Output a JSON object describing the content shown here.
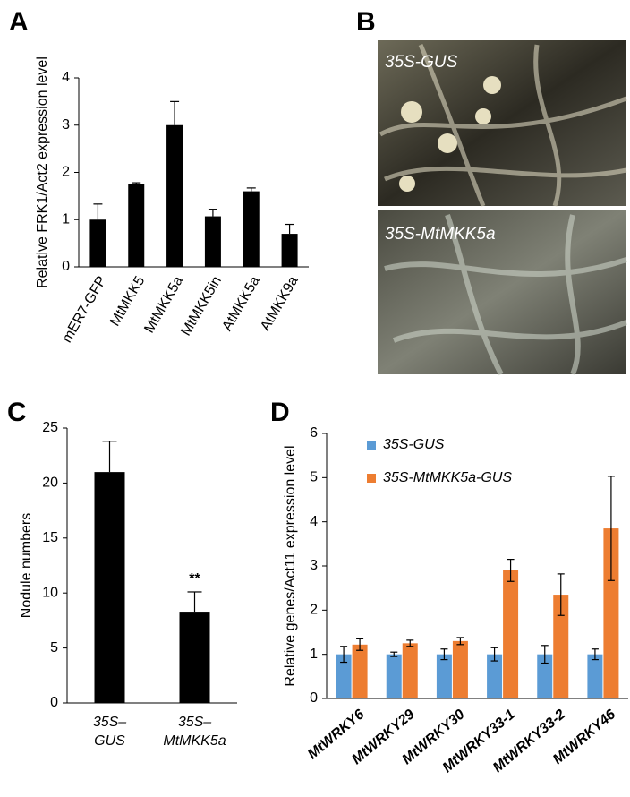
{
  "chart_data": [
    {
      "type": "bar",
      "label": "A",
      "y_label": "Relative FRK1/Act2 expression level",
      "categories": [
        "mER7-GFP",
        "MtMKK5",
        "MtMKK5a",
        "MtMKK5in",
        "AtMKK5a",
        "AtMKK9a"
      ],
      "values": [
        1.0,
        1.75,
        3.0,
        1.07,
        1.6,
        0.7
      ],
      "errors": [
        0.33,
        0.03,
        0.5,
        0.15,
        0.07,
        0.2
      ],
      "color": "#000000",
      "ylim": [
        0,
        4
      ],
      "yticks": [
        0,
        1,
        2,
        3,
        4
      ]
    },
    {
      "type": "bar",
      "label": "C",
      "y_label": "Nodule numbers",
      "categories": [
        [
          "35S–",
          "GUS"
        ],
        [
          "35S–",
          "MtMKK5a"
        ]
      ],
      "values": [
        21,
        8.3
      ],
      "errors": [
        2.8,
        1.8
      ],
      "annotation": "**",
      "color": "#000000",
      "ylim": [
        0,
        25
      ],
      "yticks": [
        0,
        5,
        10,
        15,
        20,
        25
      ]
    },
    {
      "type": "grouped_bar",
      "label": "D",
      "y_label": "Relative genes/Act11 expression level",
      "categories": [
        "MtWRKY6",
        "MtWRKY29",
        "MtWRKY30",
        "MtWRKY33-1",
        "MtWRKY33-2",
        "MtWRKY46"
      ],
      "series": [
        {
          "name": "35S-GUS",
          "color": "#5b9bd5",
          "values": [
            1,
            1,
            1,
            1,
            1,
            1
          ],
          "errors": [
            0.18,
            0.05,
            0.12,
            0.15,
            0.2,
            0.12
          ]
        },
        {
          "name": "35S-MtMKK5a-GUS",
          "color": "#ed7d31",
          "values": [
            1.22,
            1.25,
            1.3,
            2.9,
            2.35,
            3.85
          ],
          "errors": [
            0.13,
            0.07,
            0.08,
            0.25,
            0.47,
            1.18
          ]
        }
      ],
      "legend": "upper left",
      "ylim": [
        0,
        6
      ],
      "yticks": [
        0,
        1,
        2,
        3,
        4,
        5,
        6
      ]
    }
  ],
  "photo_panel": {
    "label": "B",
    "captions": [
      "35S-GUS",
      "35S-MtMKK5a"
    ]
  }
}
